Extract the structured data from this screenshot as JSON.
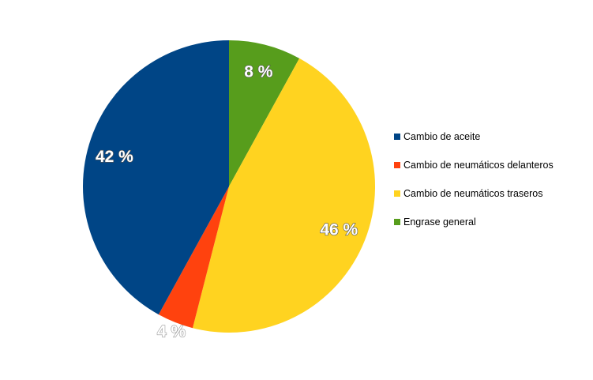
{
  "chart_data": {
    "type": "pie",
    "title": "",
    "start_angle_deg": 0,
    "direction": "clockwise",
    "label_format": "percent",
    "legend_position": "right",
    "slices": [
      {
        "name": "Engrase general",
        "value": 8,
        "label": "8 %",
        "color": "#579d1c",
        "label_placement": "inside"
      },
      {
        "name": "Cambio de neumáticos traseros",
        "value": 46,
        "label": "46 %",
        "color": "#ffd320",
        "label_placement": "inside"
      },
      {
        "name": "Cambio de neumáticos delanteros",
        "value": 4,
        "label": "4 %",
        "color": "#ff420e",
        "label_placement": "outside"
      },
      {
        "name": "Cambio de aceite",
        "value": 42,
        "label": "42 %",
        "color": "#004586",
        "label_placement": "inside"
      }
    ],
    "legend": [
      {
        "label": "Cambio de aceite",
        "color": "#004586"
      },
      {
        "label": "Cambio de neumáticos delanteros",
        "color": "#ff420e"
      },
      {
        "label": "Cambio de neumáticos traseros",
        "color": "#ffd320"
      },
      {
        "label": "Engrase general",
        "color": "#579d1c"
      }
    ]
  }
}
